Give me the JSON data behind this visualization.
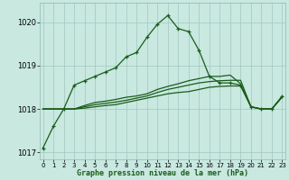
{
  "title": "Graphe pression niveau de la mer (hPa)",
  "background_color": "#c8e8e0",
  "grid_color": "#a0c8c0",
  "line_color": "#1a5c1a",
  "hours": [
    0,
    1,
    2,
    3,
    4,
    5,
    6,
    7,
    8,
    9,
    10,
    11,
    12,
    13,
    14,
    15,
    16,
    17,
    18,
    19,
    20,
    21,
    22,
    23
  ],
  "line_main": [
    1017.1,
    1017.6,
    1018.0,
    1018.55,
    1018.65,
    1018.75,
    1018.85,
    1018.95,
    1019.2,
    1019.3,
    1019.65,
    1019.95,
    1020.15,
    1019.85,
    1019.78,
    1019.35,
    1018.75,
    1018.6,
    1018.6,
    1018.55,
    1018.05,
    1018.0,
    1018.0,
    1018.3
  ],
  "line_flat1": [
    1018.0,
    1018.0,
    1018.0,
    1018.0,
    1018.02,
    1018.05,
    1018.08,
    1018.1,
    1018.15,
    1018.2,
    1018.25,
    1018.3,
    1018.35,
    1018.38,
    1018.4,
    1018.45,
    1018.5,
    1018.52,
    1018.53,
    1018.53,
    1018.05,
    1018.0,
    1018.0,
    1018.28
  ],
  "line_flat2": [
    1018.0,
    1018.0,
    1018.0,
    1018.0,
    1018.05,
    1018.1,
    1018.13,
    1018.16,
    1018.2,
    1018.25,
    1018.3,
    1018.38,
    1018.45,
    1018.5,
    1018.55,
    1018.6,
    1018.63,
    1018.65,
    1018.66,
    1018.66,
    1018.05,
    1018.0,
    1018.0,
    1018.28
  ],
  "line_flat3": [
    1018.0,
    1018.0,
    1018.0,
    1018.0,
    1018.08,
    1018.15,
    1018.18,
    1018.22,
    1018.27,
    1018.3,
    1018.35,
    1018.45,
    1018.52,
    1018.58,
    1018.65,
    1018.7,
    1018.75,
    1018.75,
    1018.78,
    1018.58,
    1018.05,
    1018.0,
    1018.0,
    1018.28
  ],
  "ylim": [
    1016.85,
    1020.45
  ],
  "yticks": [
    1017,
    1018,
    1019,
    1020
  ],
  "xticks": [
    0,
    1,
    2,
    3,
    4,
    5,
    6,
    7,
    8,
    9,
    10,
    11,
    12,
    13,
    14,
    15,
    16,
    17,
    18,
    19,
    20,
    21,
    22,
    23
  ]
}
